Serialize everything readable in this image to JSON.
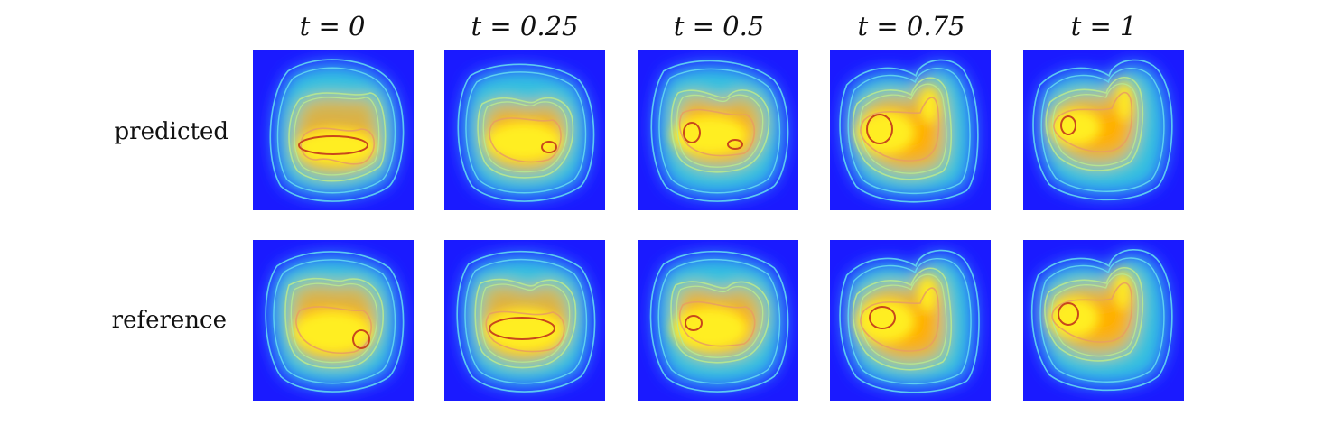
{
  "figure": {
    "columns": [
      {
        "title": "t = 0"
      },
      {
        "title": "t = 0.25"
      },
      {
        "title": "t = 0.5"
      },
      {
        "title": "t = 0.75"
      },
      {
        "title": "t = 1"
      }
    ],
    "rows": [
      {
        "label": "predicted"
      },
      {
        "label": "reference"
      }
    ]
  },
  "colors": {
    "background_field": "#1a1aff",
    "low": "#2f6bff",
    "mid_low": "#33c0e0",
    "mid": "#7fd6a0",
    "mid_high": "#d8b24a",
    "high": "#ffb000",
    "peak": "#ffee22",
    "contour_low": "#64d8f0",
    "contour_mid": "#b8e890",
    "contour_high": "#e8a060",
    "contour_peak": "#c8481c"
  }
}
